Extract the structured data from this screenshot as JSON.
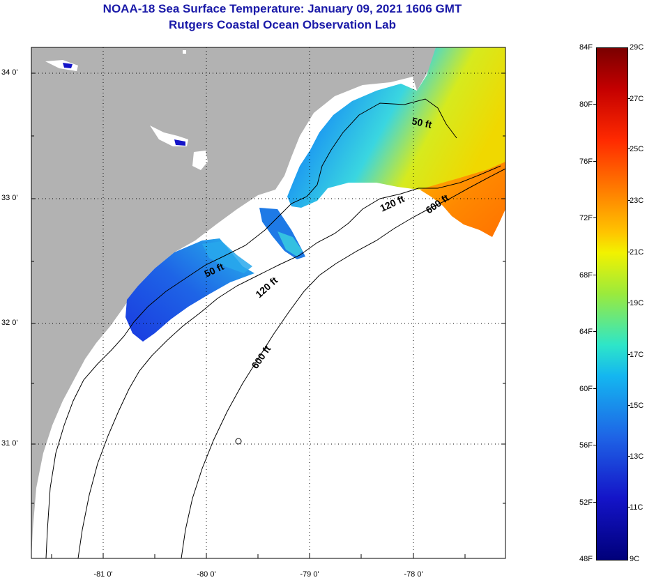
{
  "title": {
    "line1": "NOAA-18 Sea Surface Temperature:  January 09, 2021 1606 GMT",
    "line2": "Rutgers Coastal Ocean Observation Lab"
  },
  "map": {
    "lat_labels": [
      "34 0'",
      "33 0'",
      "32 0'",
      "31 0'"
    ],
    "lon_labels": [
      "-81 0'",
      "-80 0'",
      "-79 0'",
      "-78 0'"
    ],
    "contour_labels": {
      "c50_north": "50 ft",
      "c50_south": "50 ft",
      "c120_north": "120 ft",
      "c120_south": "120 ft",
      "c600_north": "600 ft",
      "c600_south": "600 ft"
    },
    "colors": {
      "land": "#b2b2b2",
      "ocean": "#ffffff",
      "title": "#1a1aa8"
    }
  },
  "colorbar": {
    "fahrenheit": [
      "84F",
      "80F",
      "76F",
      "72F",
      "68F",
      "64F",
      "60F",
      "56F",
      "52F",
      "48F"
    ],
    "celsius": [
      "29C",
      "27C",
      "25C",
      "23C",
      "21C",
      "19C",
      "17C",
      "15C",
      "13C",
      "11C",
      "9C"
    ]
  }
}
